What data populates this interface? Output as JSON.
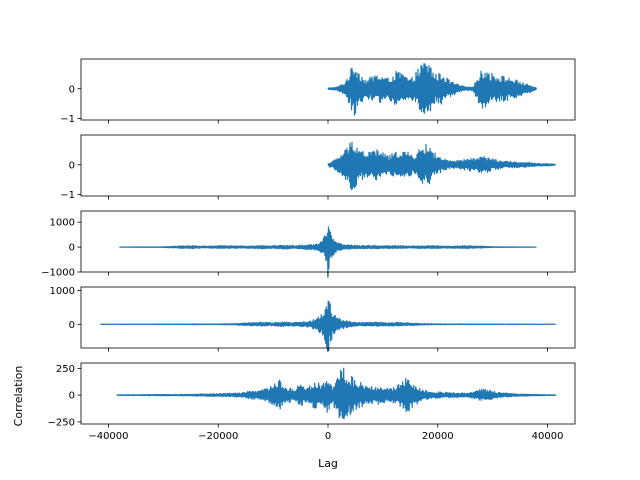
{
  "figure": {
    "xlabel": "Lag",
    "ylabel": "Correlation"
  },
  "chart_data": [
    {
      "type": "line",
      "panel": 1,
      "xlim": [
        -45000,
        45000
      ],
      "ylim": [
        -1.05,
        1.0
      ],
      "yticks": [
        -1,
        0
      ],
      "xticks": [
        -40000,
        -20000,
        0,
        20000,
        40000
      ],
      "show_xticklabels": false,
      "color": "#1f77b4",
      "x_range": [
        0,
        38000
      ],
      "envelope": [
        [
          0,
          0.03
        ],
        [
          1500,
          0.05
        ],
        [
          3000,
          0.2
        ],
        [
          4000,
          0.6
        ],
        [
          4800,
          0.9
        ],
        [
          6000,
          0.5
        ],
        [
          7000,
          0.3
        ],
        [
          8500,
          0.5
        ],
        [
          9800,
          0.45
        ],
        [
          11000,
          0.35
        ],
        [
          12500,
          0.6
        ],
        [
          13500,
          0.55
        ],
        [
          15000,
          0.3
        ],
        [
          16500,
          0.7
        ],
        [
          17500,
          0.95
        ],
        [
          18500,
          0.9
        ],
        [
          19500,
          0.5
        ],
        [
          20800,
          0.55
        ],
        [
          22000,
          0.3
        ],
        [
          24000,
          0.12
        ],
        [
          25500,
          0.05
        ],
        [
          26500,
          0.1
        ],
        [
          27500,
          0.5
        ],
        [
          28500,
          0.75
        ],
        [
          29500,
          0.55
        ],
        [
          31500,
          0.45
        ],
        [
          33500,
          0.35
        ],
        [
          35000,
          0.25
        ],
        [
          36500,
          0.15
        ],
        [
          38000,
          0.02
        ]
      ]
    },
    {
      "type": "line",
      "panel": 2,
      "xlim": [
        -45000,
        45000
      ],
      "ylim": [
        -1.05,
        1.0
      ],
      "yticks": [
        -1,
        0
      ],
      "xticks": [
        -40000,
        -20000,
        0,
        20000,
        40000
      ],
      "show_xticklabels": false,
      "color": "#1f77b4",
      "x_range": [
        0,
        41500
      ],
      "envelope": [
        [
          0,
          0.04
        ],
        [
          1500,
          0.2
        ],
        [
          2800,
          0.45
        ],
        [
          4000,
          0.75
        ],
        [
          4600,
          0.95
        ],
        [
          5500,
          0.6
        ],
        [
          7000,
          0.4
        ],
        [
          8500,
          0.55
        ],
        [
          9800,
          0.45
        ],
        [
          11000,
          0.3
        ],
        [
          12500,
          0.45
        ],
        [
          14000,
          0.5
        ],
        [
          15500,
          0.3
        ],
        [
          16500,
          0.5
        ],
        [
          17500,
          0.7
        ],
        [
          18500,
          0.65
        ],
        [
          19500,
          0.4
        ],
        [
          21000,
          0.2
        ],
        [
          22500,
          0.12
        ],
        [
          24000,
          0.15
        ],
        [
          25500,
          0.2
        ],
        [
          27000,
          0.25
        ],
        [
          28500,
          0.3
        ],
        [
          30000,
          0.2
        ],
        [
          32000,
          0.12
        ],
        [
          34000,
          0.1
        ],
        [
          36000,
          0.08
        ],
        [
          38000,
          0.05
        ],
        [
          40000,
          0.04
        ],
        [
          41500,
          0.02
        ]
      ]
    },
    {
      "type": "line",
      "panel": 3,
      "xlim": [
        -45000,
        45000
      ],
      "ylim": [
        -1000,
        1450
      ],
      "yticks": [
        -1000,
        0,
        1000
      ],
      "xticks": [
        -40000,
        -20000,
        0,
        20000,
        40000
      ],
      "show_xticklabels": false,
      "color": "#1f77b4",
      "x_range": [
        -38000,
        38000
      ],
      "envelope": [
        [
          -38000,
          5
        ],
        [
          -30000,
          15
        ],
        [
          -27000,
          50
        ],
        [
          -25000,
          60
        ],
        [
          -22000,
          40
        ],
        [
          -20000,
          60
        ],
        [
          -17000,
          55
        ],
        [
          -15000,
          45
        ],
        [
          -12000,
          70
        ],
        [
          -10000,
          55
        ],
        [
          -8000,
          80
        ],
        [
          -6000,
          60
        ],
        [
          -4000,
          90
        ],
        [
          -2500,
          120
        ],
        [
          -1500,
          200
        ],
        [
          -800,
          400
        ],
        [
          -300,
          700
        ],
        [
          0,
          1400
        ],
        [
          300,
          700
        ],
        [
          800,
          400
        ],
        [
          1500,
          200
        ],
        [
          2500,
          120
        ],
        [
          4000,
          90
        ],
        [
          6000,
          60
        ],
        [
          8000,
          80
        ],
        [
          10000,
          55
        ],
        [
          12000,
          70
        ],
        [
          15000,
          45
        ],
        [
          17000,
          55
        ],
        [
          20000,
          60
        ],
        [
          22000,
          40
        ],
        [
          25000,
          60
        ],
        [
          27000,
          50
        ],
        [
          30000,
          15
        ],
        [
          38000,
          5
        ]
      ]
    },
    {
      "type": "line",
      "panel": 4,
      "xlim": [
        -45000,
        45000
      ],
      "ylim": [
        -700,
        1100
      ],
      "yticks": [
        0,
        1000
      ],
      "xticks": [
        -40000,
        -20000,
        0,
        20000,
        40000
      ],
      "show_xticklabels": false,
      "color": "#1f77b4",
      "x_range": [
        -41500,
        41500
      ],
      "envelope": [
        [
          -41500,
          3
        ],
        [
          -30000,
          8
        ],
        [
          -20000,
          12
        ],
        [
          -17000,
          20
        ],
        [
          -14000,
          50
        ],
        [
          -12000,
          60
        ],
        [
          -10000,
          50
        ],
        [
          -8000,
          70
        ],
        [
          -6000,
          55
        ],
        [
          -4000,
          80
        ],
        [
          -2500,
          150
        ],
        [
          -1500,
          250
        ],
        [
          -800,
          400
        ],
        [
          -300,
          650
        ],
        [
          0,
          1000
        ],
        [
          300,
          650
        ],
        [
          800,
          400
        ],
        [
          1500,
          250
        ],
        [
          2500,
          150
        ],
        [
          4000,
          80
        ],
        [
          6000,
          55
        ],
        [
          8000,
          70
        ],
        [
          10000,
          50
        ],
        [
          12000,
          60
        ],
        [
          14000,
          50
        ],
        [
          17000,
          20
        ],
        [
          20000,
          12
        ],
        [
          30000,
          8
        ],
        [
          41500,
          3
        ]
      ]
    },
    {
      "type": "line",
      "panel": 5,
      "xlim": [
        -45000,
        45000
      ],
      "ylim": [
        -270,
        300
      ],
      "yticks": [
        -250,
        0,
        250
      ],
      "xticks": [
        -40000,
        -20000,
        0,
        20000,
        40000
      ],
      "show_xticklabels": true,
      "color": "#1f77b4",
      "x_range": [
        -38500,
        41500
      ],
      "envelope": [
        [
          -38500,
          3
        ],
        [
          -25000,
          8
        ],
        [
          -20000,
          15
        ],
        [
          -16000,
          20
        ],
        [
          -14000,
          40
        ],
        [
          -12000,
          50
        ],
        [
          -10000,
          90
        ],
        [
          -9000,
          160
        ],
        [
          -8000,
          80
        ],
        [
          -6000,
          60
        ],
        [
          -5000,
          120
        ],
        [
          -4000,
          70
        ],
        [
          -2500,
          130
        ],
        [
          -1500,
          110
        ],
        [
          -500,
          150
        ],
        [
          0,
          170
        ],
        [
          800,
          90
        ],
        [
          1500,
          150
        ],
        [
          2500,
          270
        ],
        [
          3500,
          220
        ],
        [
          5000,
          140
        ],
        [
          6500,
          110
        ],
        [
          8000,
          80
        ],
        [
          9500,
          90
        ],
        [
          11000,
          60
        ],
        [
          12500,
          80
        ],
        [
          13500,
          140
        ],
        [
          14500,
          170
        ],
        [
          15500,
          120
        ],
        [
          17000,
          50
        ],
        [
          19000,
          35
        ],
        [
          22000,
          25
        ],
        [
          25000,
          20
        ],
        [
          27000,
          40
        ],
        [
          28000,
          60
        ],
        [
          29000,
          50
        ],
        [
          31000,
          25
        ],
        [
          35000,
          10
        ],
        [
          41500,
          3
        ]
      ]
    }
  ]
}
